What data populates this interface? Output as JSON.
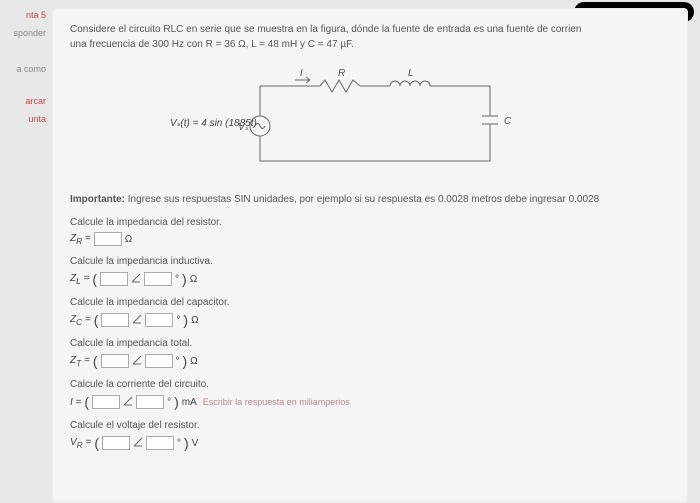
{
  "sidebar": {
    "items": [
      {
        "label": "nta 5",
        "red": true
      },
      {
        "label": "sponder",
        "red": false
      },
      {
        "label": "a como",
        "red": false
      },
      {
        "label": "arcar",
        "red": true
      },
      {
        "label": "unta",
        "red": true
      }
    ]
  },
  "question": {
    "line1": "Considere el circuito RLC en serie que se muestra en la figura, dónde la fuente de entrada es una fuente de corrien",
    "line2": "una frecuencia de 300 Hz con R = 36 Ω,  L = 48 mH y C = 47 µF."
  },
  "circuit": {
    "labels": {
      "I": "I",
      "R": "R",
      "L": "L",
      "C": "C",
      "Vs": "Vₛ"
    },
    "source_formula": "Vₛ(t) = 4 sin (1885t)"
  },
  "importante": {
    "prefix": "Importante:",
    "text": " Ingrese sus respuestas SIN unidades, por ejemplo si su respuesta es 0.0028 metros debe ingresar 0.0028"
  },
  "calculations": [
    {
      "label": "Calcule la impedancia del resistor.",
      "var": "Z_R",
      "type": "single",
      "unit": "Ω"
    },
    {
      "label": "Calcule la impedancia inductiva.",
      "var": "Z_L",
      "type": "complex",
      "unit": "Ω"
    },
    {
      "label": "Calcule la impedancia del capacitor.",
      "var": "Z_C",
      "type": "complex",
      "unit": "Ω"
    },
    {
      "label": "Calcule la impedancia total.",
      "var": "Z_T",
      "type": "complex",
      "unit": "Ω"
    },
    {
      "label": "Calcule la corriente del circuito.",
      "var": "I",
      "type": "complex",
      "unit": "mA",
      "note": "Escribir la respuesta en miliamperios"
    },
    {
      "label": "Calcule el voltaje del resistor.",
      "var": "V_R",
      "type": "complex",
      "unit": "V"
    }
  ],
  "colors": {
    "background": "#e8e8e8",
    "panel": "#f5f5f5",
    "text": "#555",
    "circuit_stroke": "#666"
  }
}
